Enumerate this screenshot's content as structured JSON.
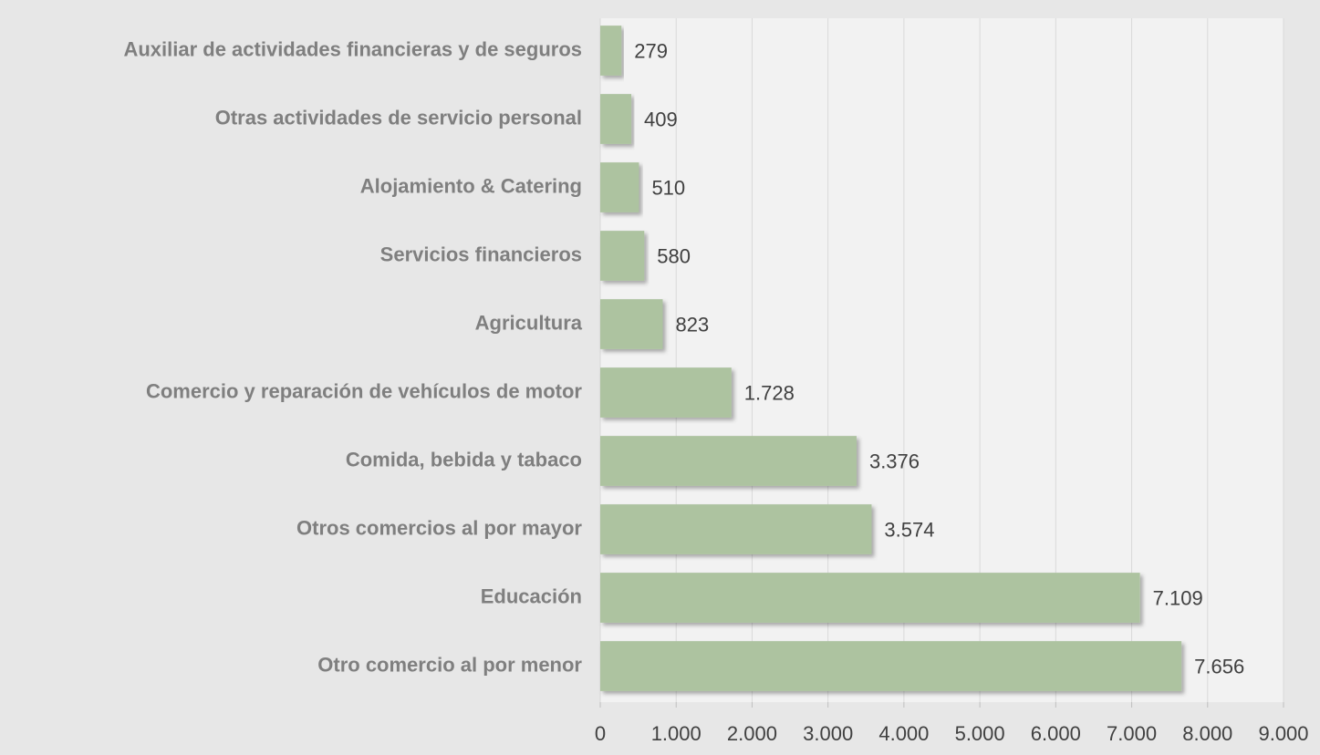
{
  "chart_data": {
    "type": "bar",
    "orientation": "horizontal",
    "categories": [
      "Auxiliar de actividades financieras y de seguros",
      "Otras actividades de servicio personal",
      "Alojamiento & Catering",
      "Servicios financieros",
      "Agricultura",
      "Comercio y reparación de vehículos de motor",
      "Comida, bebida y tabaco",
      "Otros comercios al por mayor",
      "Educación",
      "Otro comercio al por menor"
    ],
    "values": [
      279,
      409,
      510,
      580,
      823,
      1728,
      3376,
      3574,
      7109,
      7656
    ],
    "value_labels": [
      "279",
      "409",
      "510",
      "580",
      "823",
      "1.728",
      "3.376",
      "3.574",
      "7.109",
      "7.656"
    ],
    "color": "#adc3a0",
    "xlim": [
      0,
      9000
    ],
    "xticks": [
      0,
      {
        "value": 1000,
        "label": "1.000"
      },
      {
        "value": 2000,
        "label": "2.000"
      },
      {
        "value": 3000,
        "label": "3.000"
      },
      {
        "value": 4000,
        "label": "4.000"
      },
      {
        "value": 5000,
        "label": "5.000"
      },
      {
        "value": 6000,
        "label": "6.000"
      },
      {
        "value": 7000,
        "label": "7.000"
      },
      {
        "value": 8000,
        "label": "8.000"
      },
      {
        "value": 9000,
        "label": "9.000"
      }
    ],
    "grid": true
  }
}
